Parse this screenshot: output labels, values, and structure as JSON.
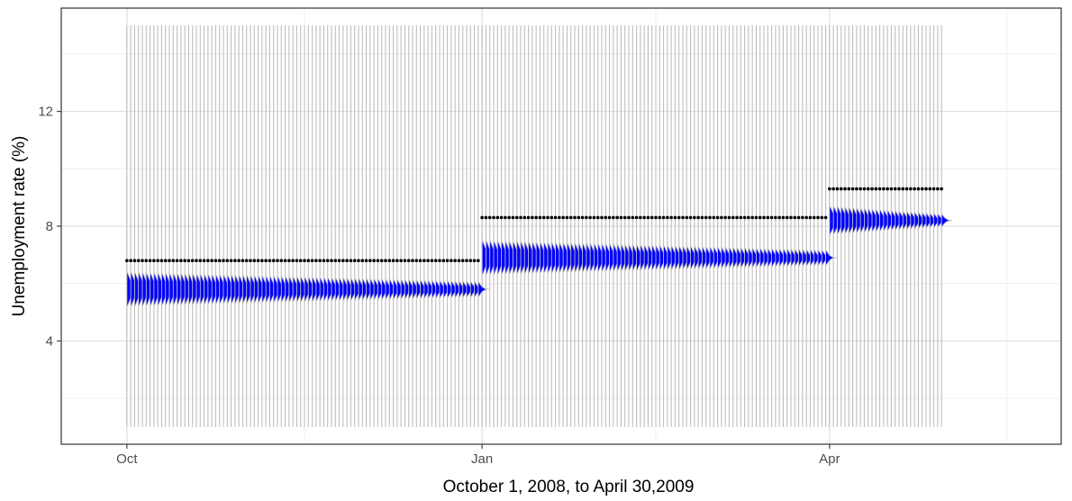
{
  "chart_data": {
    "type": "line",
    "title": "",
    "xlabel": "October 1, 2008, to April 30,2009",
    "ylabel": "Unemployment rate (%)",
    "xlim": [
      "2008-09-14",
      "2009-05-31"
    ],
    "ylim": [
      0.4,
      15.6
    ],
    "grid": true,
    "legend": "none",
    "x_ticks": [
      {
        "date": "2008-10-01",
        "label": "Oct"
      },
      {
        "date": "2009-01-01",
        "label": "Jan"
      },
      {
        "date": "2009-04-01",
        "label": "Apr"
      }
    ],
    "y_ticks": [
      4,
      8,
      12
    ],
    "series": [
      {
        "kind": "reference-level",
        "color": "#000000",
        "segments": [
          {
            "start": "2008-10-01",
            "end": "2008-12-31",
            "value": 6.8
          },
          {
            "start": "2009-01-01",
            "end": "2009-03-31",
            "value": 8.3
          },
          {
            "start": "2009-04-01",
            "end": "2009-04-30",
            "value": 9.3
          }
        ]
      },
      {
        "kind": "daily-forecast-densities",
        "line_color": "#bebebe",
        "fill_color": "#0000ff",
        "daily_range": [
          1.0,
          15.0
        ],
        "spans_through": "2009-04-30",
        "periods": [
          {
            "start": "2008-10-01",
            "end": "2008-12-31",
            "center": 5.8,
            "half_width": 0.6,
            "tail_end": "2009-01-06"
          },
          {
            "start": "2009-01-01",
            "end": "2009-03-31",
            "center": 6.9,
            "half_width": 0.6,
            "tail_end": "2009-04-07"
          },
          {
            "start": "2009-04-01",
            "end": "2009-04-30",
            "center": 8.2,
            "half_width": 0.5,
            "tail_end": "2009-05-12"
          }
        ]
      }
    ]
  }
}
